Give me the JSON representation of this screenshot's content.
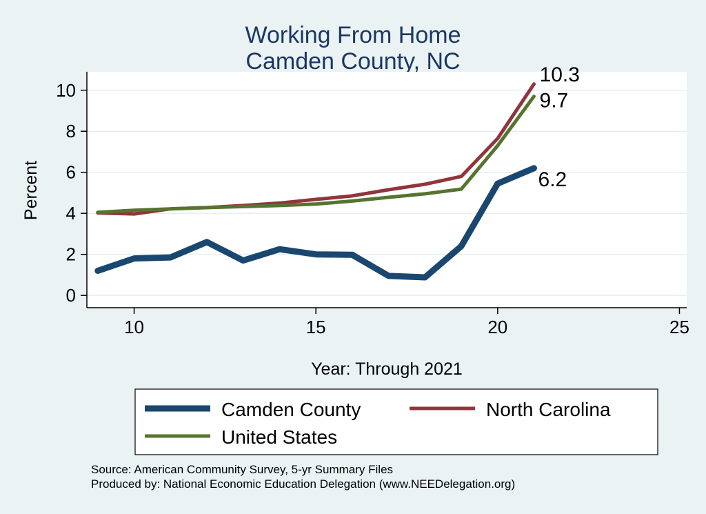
{
  "chart_data": {
    "type": "line",
    "title": [
      "Working From Home",
      "Camden County, NC"
    ],
    "xlabel": "Year: Through 2021",
    "ylabel": "Percent",
    "xlim": [
      8.7,
      25.2
    ],
    "ylim": [
      -0.6,
      10.9
    ],
    "xticks": [
      10,
      15,
      20,
      25
    ],
    "yticks": [
      0,
      2,
      4,
      6,
      8,
      10
    ],
    "grid": "horizontal",
    "legend_position": "bottom",
    "series": [
      {
        "name": "Camden County",
        "color": "#1a476f",
        "x": [
          9,
          10,
          11,
          12,
          13,
          14,
          15,
          16,
          17,
          18,
          19,
          20,
          21
        ],
        "values": [
          1.2,
          1.8,
          1.85,
          2.6,
          1.7,
          2.25,
          2.0,
          1.98,
          0.95,
          0.88,
          2.4,
          5.45,
          6.2
        ],
        "end_label": "6.2"
      },
      {
        "name": "North Carolina",
        "color": "#90353b",
        "x": [
          9,
          10,
          11,
          12,
          13,
          14,
          15,
          16,
          17,
          18,
          19,
          20,
          21
        ],
        "values": [
          4.02,
          3.97,
          4.22,
          4.28,
          4.38,
          4.5,
          4.68,
          4.85,
          5.15,
          5.42,
          5.8,
          7.65,
          10.3
        ],
        "end_label": "10.3"
      },
      {
        "name": "United States",
        "color": "#55752f",
        "x": [
          9,
          10,
          11,
          12,
          13,
          14,
          15,
          16,
          17,
          18,
          19,
          20,
          21
        ],
        "values": [
          4.05,
          4.15,
          4.22,
          4.28,
          4.33,
          4.38,
          4.45,
          4.6,
          4.78,
          4.95,
          5.18,
          7.3,
          9.7
        ],
        "end_label": "9.7"
      }
    ]
  },
  "source_lines": [
    "Source: American Community Survey, 5-yr Summary Files",
    "Produced by: National Economic Education Delegation (www.NEEDelegation.org)"
  ]
}
